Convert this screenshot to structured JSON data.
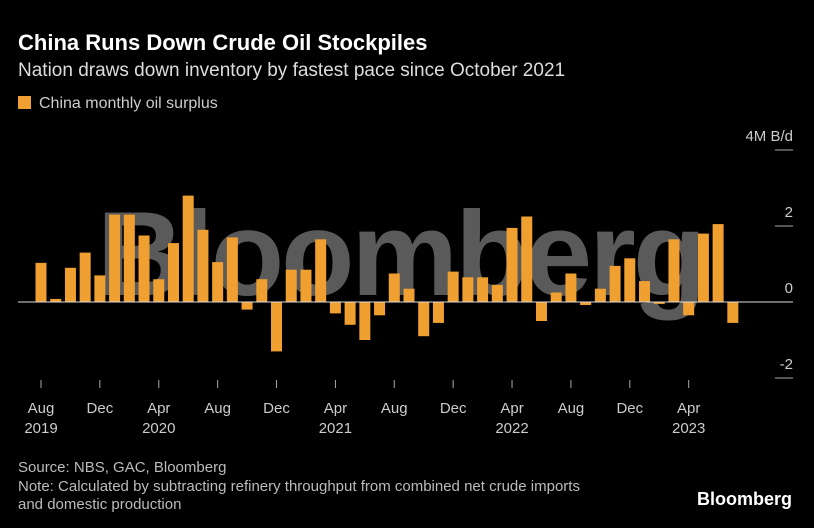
{
  "chart_data": {
    "type": "bar",
    "title": "China Runs Down Crude Oil Stockpiles",
    "subtitle": "Nation draws down inventory by fastest pace since October 2021",
    "series": [
      {
        "name": "China monthly oil surplus",
        "color": "#f0a030",
        "values": [
          1.03,
          0.08,
          0.9,
          1.3,
          0.7,
          2.3,
          2.3,
          1.75,
          0.6,
          1.55,
          2.8,
          1.9,
          1.05,
          1.7,
          -0.2,
          0.6,
          -1.3,
          0.85,
          0.85,
          1.65,
          -0.3,
          -0.6,
          -1.0,
          -0.35,
          0.75,
          0.35,
          -0.9,
          -0.55,
          0.8,
          0.65,
          0.65,
          0.45,
          1.95,
          2.25,
          -0.5,
          0.25,
          0.75,
          -0.08,
          0.35,
          0.95,
          1.15,
          0.55,
          -0.05,
          1.65,
          -0.35,
          1.8,
          2.05,
          -0.55
        ]
      }
    ],
    "categories": [
      "Aug",
      null,
      null,
      null,
      "Dec",
      null,
      null,
      null,
      "Apr",
      null,
      null,
      null,
      "Aug",
      null,
      null,
      null,
      "Dec",
      null,
      null,
      null,
      "Apr",
      null,
      null,
      null,
      "Aug",
      null,
      null,
      null,
      "Dec",
      null,
      null,
      null,
      "Apr",
      null,
      null,
      null,
      "Aug",
      null,
      null,
      null,
      "Dec",
      null,
      null,
      null,
      "Apr",
      null,
      null,
      null
    ],
    "year_labels": [
      "2019",
      null,
      null,
      null,
      null,
      null,
      null,
      null,
      "2020",
      null,
      null,
      null,
      null,
      null,
      null,
      null,
      null,
      null,
      null,
      null,
      "2021",
      null,
      null,
      null,
      null,
      null,
      null,
      null,
      null,
      null,
      null,
      null,
      "2022",
      null,
      null,
      null,
      null,
      null,
      null,
      null,
      null,
      null,
      null,
      null,
      "2023",
      null,
      null,
      null
    ],
    "ylim": [
      -2,
      4
    ],
    "yticks": [
      -2,
      0,
      2,
      {
        "value": 4,
        "label": "4M B/d"
      }
    ],
    "source": "Source: NBS, GAC, Bloomberg",
    "note": "Note: Calculated by subtracting refinery throughput from combined net crude imports and domestic production",
    "watermark": "Bloomberg",
    "logo": "Bloomberg"
  }
}
